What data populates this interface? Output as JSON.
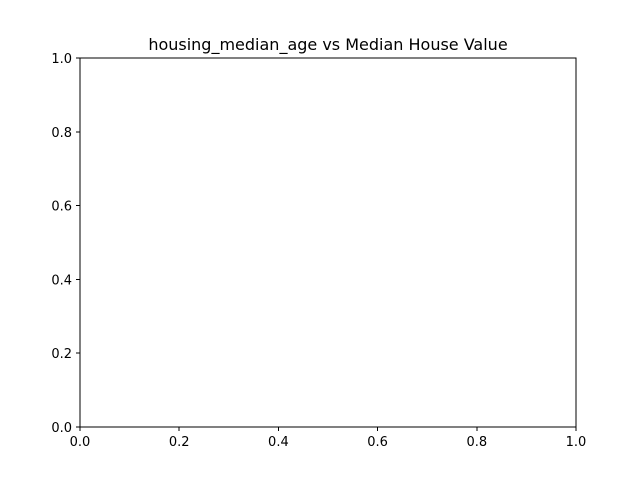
{
  "chart_data": {
    "type": "scatter",
    "title": "housing_median_age vs Median House Value",
    "xlabel": "",
    "ylabel": "",
    "xlim": [
      0,
      1
    ],
    "ylim": [
      0,
      1
    ],
    "x_ticks": [
      "0.0",
      "0.2",
      "0.4",
      "0.6",
      "0.8",
      "1.0"
    ],
    "y_ticks": [
      "0.0",
      "0.2",
      "0.4",
      "0.6",
      "0.8",
      "1.0"
    ],
    "x": [],
    "y": [],
    "grid": false,
    "legend": "none"
  }
}
